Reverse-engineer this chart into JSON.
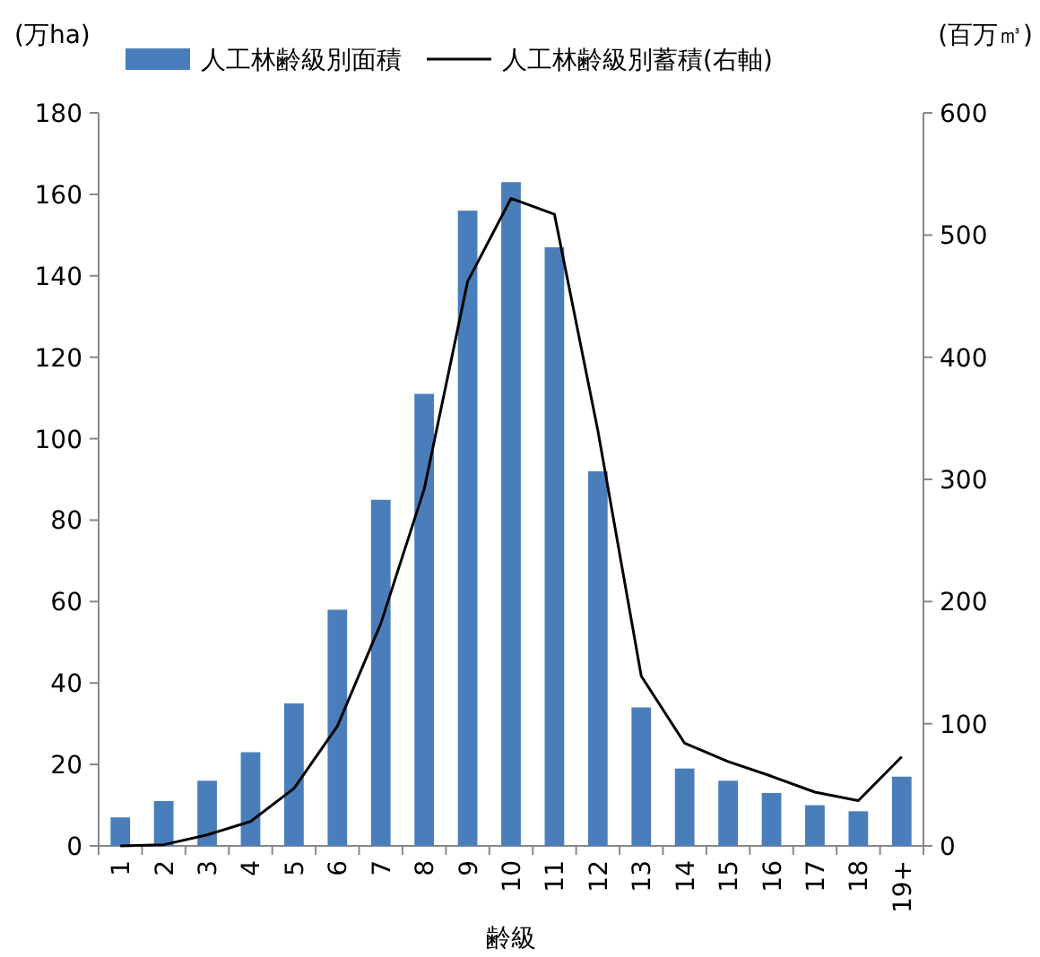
{
  "chart_data": {
    "type": "bar",
    "categories": [
      "1",
      "2",
      "3",
      "4",
      "5",
      "6",
      "7",
      "8",
      "9",
      "10",
      "11",
      "12",
      "13",
      "14",
      "15",
      "16",
      "17",
      "18",
      "19+"
    ],
    "series": [
      {
        "name": "人工林齢級別面積",
        "color": "#4a7ebb",
        "values": [
          7,
          11,
          16,
          23,
          35,
          58,
          85,
          111,
          156,
          163,
          147,
          92,
          34,
          19,
          16,
          13,
          10,
          8.5,
          17
        ]
      },
      {
        "name": "人工林齢級別蓄積(右軸)",
        "type": "line",
        "axis": "y2",
        "color": "#000000",
        "values": [
          0,
          1,
          9,
          20,
          47,
          98,
          182,
          292,
          462,
          530,
          517,
          340,
          139,
          84,
          69,
          57,
          44,
          37,
          73
        ]
      }
    ],
    "xlabel": "齢級",
    "ylabel": "(万ha)",
    "y2label": "(百万㎥)",
    "ylim": [
      0,
      180
    ],
    "yticks": [
      0,
      20,
      40,
      60,
      80,
      100,
      120,
      140,
      160,
      180
    ],
    "y2lim": [
      0,
      600
    ],
    "y2ticks": [
      0,
      100,
      200,
      300,
      400,
      500,
      600
    ],
    "legend": "top",
    "grid": false
  }
}
